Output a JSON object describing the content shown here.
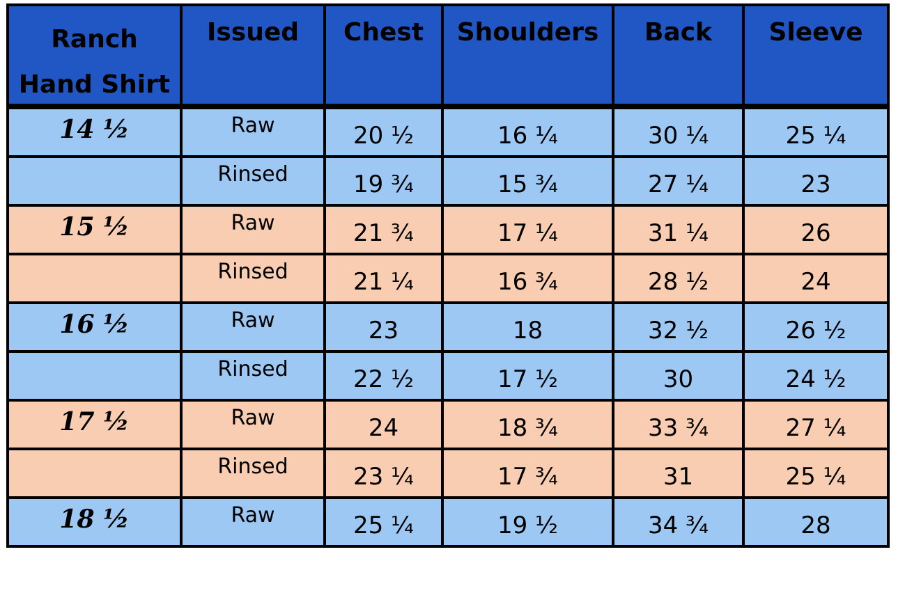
{
  "headers": [
    "Ranch Hand Shirt",
    "Issued",
    "Chest",
    "Shoulders",
    "Back",
    "Sleeve"
  ],
  "header_line_breaks": {
    "0": [
      "Ranch",
      "Hand Shirt"
    ]
  },
  "colors": {
    "header": "#2157c5",
    "blue_row": "#9dc8f4",
    "peach_row": "#f9cdb2"
  },
  "rows": [
    {
      "size": "14 ½",
      "issued": "Raw",
      "chest": "20 ½",
      "shoulders": "16 ¼",
      "back": "30 ¼",
      "sleeve": "25 ¼",
      "band": "blue"
    },
    {
      "size": "",
      "issued": "Rinsed",
      "chest": "19 ¾",
      "shoulders": "15 ¾",
      "back": "27 ¼",
      "sleeve": "23",
      "band": "blue"
    },
    {
      "size": "15 ½",
      "issued": "Raw",
      "chest": "21 ¾",
      "shoulders": "17 ¼",
      "back": "31 ¼",
      "sleeve": "26",
      "band": "peach"
    },
    {
      "size": "",
      "issued": "Rinsed",
      "chest": "21 ¼",
      "shoulders": "16 ¾",
      "back": "28 ½",
      "sleeve": "24",
      "band": "peach"
    },
    {
      "size": "16 ½",
      "issued": "Raw",
      "chest": "23",
      "shoulders": "18",
      "back": "32 ½",
      "sleeve": "26 ½",
      "band": "blue"
    },
    {
      "size": "",
      "issued": "Rinsed",
      "chest": "22 ½",
      "shoulders": "17 ½",
      "back": "30",
      "sleeve": "24 ½",
      "band": "blue"
    },
    {
      "size": "17 ½",
      "issued": "Raw",
      "chest": "24",
      "shoulders": "18 ¾",
      "back": "33 ¾",
      "sleeve": "27 ¼",
      "band": "peach"
    },
    {
      "size": "",
      "issued": "Rinsed",
      "chest": "23 ¼",
      "shoulders": "17 ¾",
      "back": "31",
      "sleeve": "25 ¼",
      "band": "peach"
    },
    {
      "size": "18 ½",
      "issued": "Raw",
      "chest": "25 ¼",
      "shoulders": "19 ½",
      "back": "34 ¾",
      "sleeve": "28",
      "band": "blue"
    }
  ]
}
